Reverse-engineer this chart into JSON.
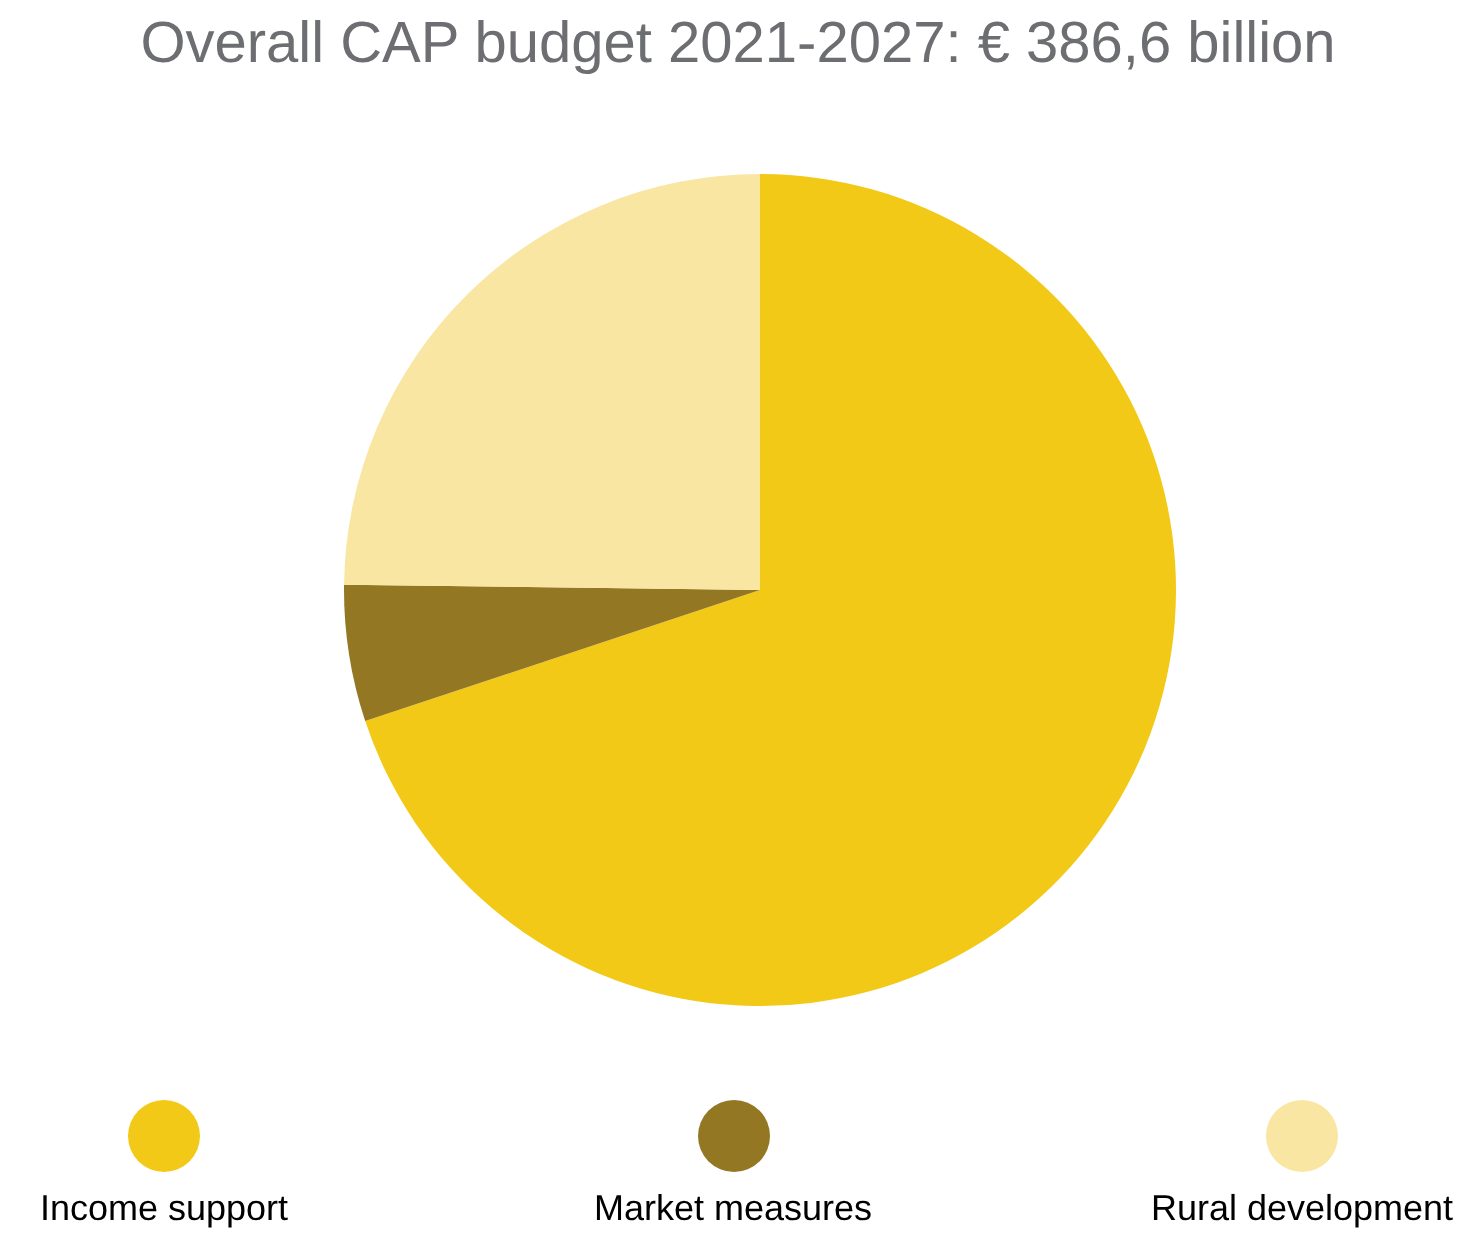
{
  "chart_data": {
    "type": "pie",
    "title": "Overall CAP budget 2021-2027: € 386,6 billion",
    "categories": [
      "Income support",
      "Market measures",
      "Rural development"
    ],
    "values": [
      69.9,
      5.3,
      24.8
    ],
    "colors": [
      "#f2c917",
      "#937723",
      "#f9e6a3"
    ],
    "legend": "bottom"
  }
}
